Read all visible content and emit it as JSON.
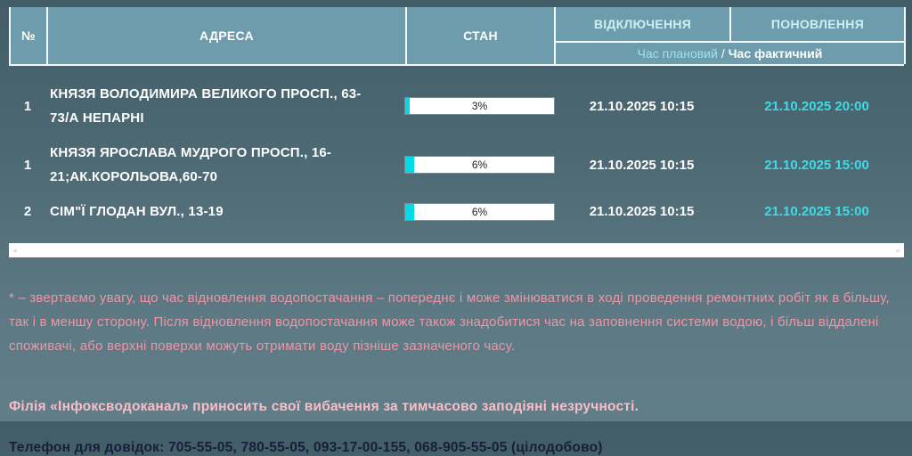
{
  "table": {
    "header": {
      "num": "№",
      "address": "АДРЕСА",
      "state": "СТАН",
      "disconnect": "ВІДКЛЮЧЕННЯ",
      "restore": "ПОНОВЛЕННЯ",
      "sub_planned": "Час плановий",
      "sub_separator": "/",
      "sub_actual": "Час фактичний"
    },
    "rows": [
      {
        "num": "1",
        "address": "КНЯЗЯ ВОЛОДИМИРА ВЕЛИКОГО ПРОСП., 63-73/А НЕПАРНІ",
        "percent": 3,
        "percent_label": "3%",
        "disconnect_time": "21.10.2025 10:15",
        "restore_time": "21.10.2025 20:00"
      },
      {
        "num": "1",
        "address": "КНЯЗЯ ЯРОСЛАВА МУДРОГО ПРОСП., 16-21;АК.КОРОЛЬОВА,60-70",
        "percent": 6,
        "percent_label": "6%",
        "disconnect_time": "21.10.2025 10:15",
        "restore_time": "21.10.2025 15:00"
      },
      {
        "num": "2",
        "address": "СІМ\"Ї ГЛОДАН ВУЛ., 13-19",
        "percent": 6,
        "percent_label": "6%",
        "disconnect_time": "21.10.2025 10:15",
        "restore_time": "21.10.2025 15:00"
      }
    ]
  },
  "scrollbar": {
    "left_arrow": "◂",
    "right_arrow": "▸"
  },
  "notes": {
    "warning": "* – звертаємо увагу, що час відновлення водопостачання – попереднє і може змінюватися в ході проведення ремонтних робіт як в більшу, так і в меншу сторону. Після відновлення водопостачання може також знадобитися час на заповнення системи водою, і більш віддалені споживачі, або верхні поверхи можуть отримати воду пізніше зазначеного часу.",
    "apology": "Філія «Інфоксводоканал» приносить свої вибачення за тимчасово заподіяні незручності.",
    "phones": "Телефон для довідок: 705-55-05, 780-55-05, 093-17-00-155, 068-905-55-05 (цілодобово)"
  },
  "colors": {
    "header_bg": "#6d9dac",
    "page_bg_top": "#425d67",
    "page_bg_bottom": "#617e88",
    "accent_cyan": "#00dbe9",
    "restore_cyan": "#3edbe6",
    "warning_pink": "#ee95a5",
    "apology_pink": "#f7bec9",
    "phones_navy": "#161f3a"
  }
}
